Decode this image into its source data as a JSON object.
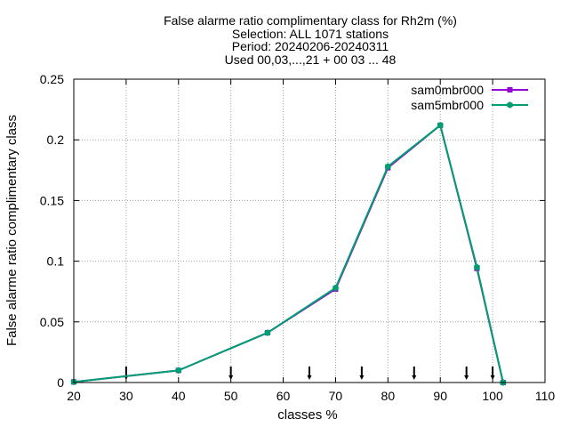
{
  "chart_data": {
    "type": "line",
    "title_lines": [
      "False alarme ratio complimentary class  for Rh2m (%)",
      "Selection: ALL    1071 stations",
      "Period: 20240206-20240311",
      "Used 00,03,...,21 + 00 03 ... 48"
    ],
    "xlabel": "classes %",
    "ylabel": "False alarme ratio complimentary class",
    "xlim": [
      20,
      110
    ],
    "ylim": [
      0,
      0.25
    ],
    "xticks": [
      20,
      30,
      40,
      50,
      60,
      70,
      80,
      90,
      100,
      110
    ],
    "yticks": [
      0,
      0.05,
      0.1,
      0.15,
      0.2,
      0.25
    ],
    "xtick_labels": [
      "20",
      "30",
      "40",
      "50",
      "60",
      "70",
      "80",
      "90",
      "100",
      "110"
    ],
    "ytick_labels": [
      "0",
      "0.05",
      "0.1",
      "0.15",
      "0.2",
      "0.25"
    ],
    "grid": true,
    "legend_position": "top-right",
    "class_markers_x": [
      30,
      50,
      65,
      75,
      85,
      95,
      100
    ],
    "series": [
      {
        "name": "sam0mbr000",
        "color": "#9400d3",
        "x": [
          20,
          40,
          57,
          70,
          80,
          90,
          97,
          102
        ],
        "y": [
          0.0005,
          0.01,
          0.041,
          0.077,
          0.177,
          0.212,
          0.094,
          0.0
        ]
      },
      {
        "name": "sam5mbr000",
        "color": "#009e73",
        "x": [
          20,
          40,
          57,
          70,
          80,
          90,
          97,
          102
        ],
        "y": [
          0.0005,
          0.01,
          0.041,
          0.078,
          0.178,
          0.212,
          0.095,
          0.0
        ]
      }
    ]
  }
}
